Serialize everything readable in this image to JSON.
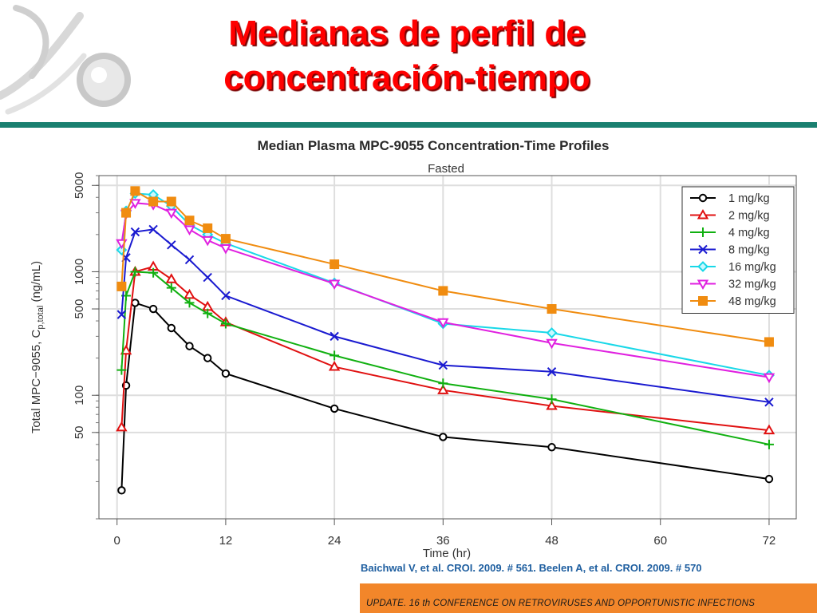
{
  "slide": {
    "title_line1": "Medianas de perfil de",
    "title_line2": "concentración-tiempo",
    "citation": "Baichwal V, et al. CROI. 2009. # 561. Beelen A, et al. CROI. 2009. # 570",
    "footer": "UPDATE. 16 th CONFERENCE ON RETROVIRUSES AND OPPORTUNISTIC INFECTIONS"
  },
  "chart_data": {
    "type": "line",
    "title": "Median Plasma MPC-9055 Concentration-Time Profiles",
    "subtitle": "Fasted",
    "xlabel": "Time (hr)",
    "ylabel": "Total MPC−9055, C",
    "ylabel_sub": "p,total",
    "ylabel_unit": " (ng/mL)",
    "xlim": [
      -2,
      75
    ],
    "ylim": [
      10,
      6000
    ],
    "yscale": "log",
    "x_ticks": [
      0,
      12,
      24,
      36,
      48,
      60,
      72
    ],
    "x_tick_labels": [
      "0",
      "12",
      "24",
      "36",
      "48",
      "60",
      "72"
    ],
    "y_ticks": [
      50,
      100,
      500,
      1000,
      5000
    ],
    "y_tick_labels": [
      "50",
      "100",
      "500",
      "1000",
      "5000"
    ],
    "grid": true,
    "legend_position": "top-right",
    "series": [
      {
        "name": "1 mg/kg",
        "color": "#000000",
        "marker": "circle",
        "x": [
          0.5,
          1,
          2,
          4,
          6,
          8,
          10,
          12,
          24,
          36,
          48,
          72
        ],
        "y": [
          17,
          120,
          560,
          500,
          350,
          250,
          200,
          150,
          78,
          46,
          38,
          21
        ]
      },
      {
        "name": "2 mg/kg",
        "color": "#e01010",
        "marker": "triangle-up",
        "x": [
          0.5,
          1,
          2,
          4,
          6,
          8,
          10,
          12,
          24,
          36,
          48,
          72
        ],
        "y": [
          55,
          230,
          1000,
          1100,
          870,
          650,
          520,
          390,
          170,
          110,
          82,
          52
        ]
      },
      {
        "name": "4 mg/kg",
        "color": "#10b010",
        "marker": "plus",
        "x": [
          0.5,
          1,
          2,
          4,
          6,
          8,
          10,
          12,
          24,
          36,
          48,
          72
        ],
        "y": [
          160,
          640,
          1000,
          980,
          740,
          560,
          460,
          380,
          210,
          125,
          93,
          40
        ]
      },
      {
        "name": "8 mg/kg",
        "color": "#1a1ad0",
        "marker": "cross",
        "x": [
          0.5,
          1,
          2,
          4,
          6,
          8,
          10,
          12,
          24,
          36,
          48,
          72
        ],
        "y": [
          450,
          1300,
          2100,
          2200,
          1650,
          1250,
          900,
          640,
          300,
          175,
          155,
          88
        ]
      },
      {
        "name": "16 mg/kg",
        "color": "#18d8e8",
        "marker": "diamond",
        "x": [
          0.5,
          1,
          2,
          4,
          6,
          8,
          10,
          12,
          24,
          36,
          48,
          72
        ],
        "y": [
          1500,
          3100,
          4300,
          4200,
          3400,
          2400,
          2000,
          1700,
          810,
          380,
          320,
          145
        ]
      },
      {
        "name": "32 mg/kg",
        "color": "#e020e0",
        "marker": "triangle-down",
        "x": [
          0.5,
          1,
          2,
          4,
          6,
          8,
          10,
          12,
          24,
          36,
          48,
          72
        ],
        "y": [
          1700,
          2950,
          3600,
          3500,
          3000,
          2200,
          1800,
          1550,
          800,
          390,
          265,
          140
        ]
      },
      {
        "name": "48 mg/kg",
        "color": "#f08c10",
        "marker": "square",
        "x": [
          0.5,
          1,
          2,
          4,
          6,
          8,
          10,
          12,
          24,
          36,
          48,
          72
        ],
        "y": [
          760,
          3000,
          4500,
          3700,
          3700,
          2600,
          2250,
          1850,
          1150,
          700,
          500,
          270
        ]
      }
    ]
  }
}
